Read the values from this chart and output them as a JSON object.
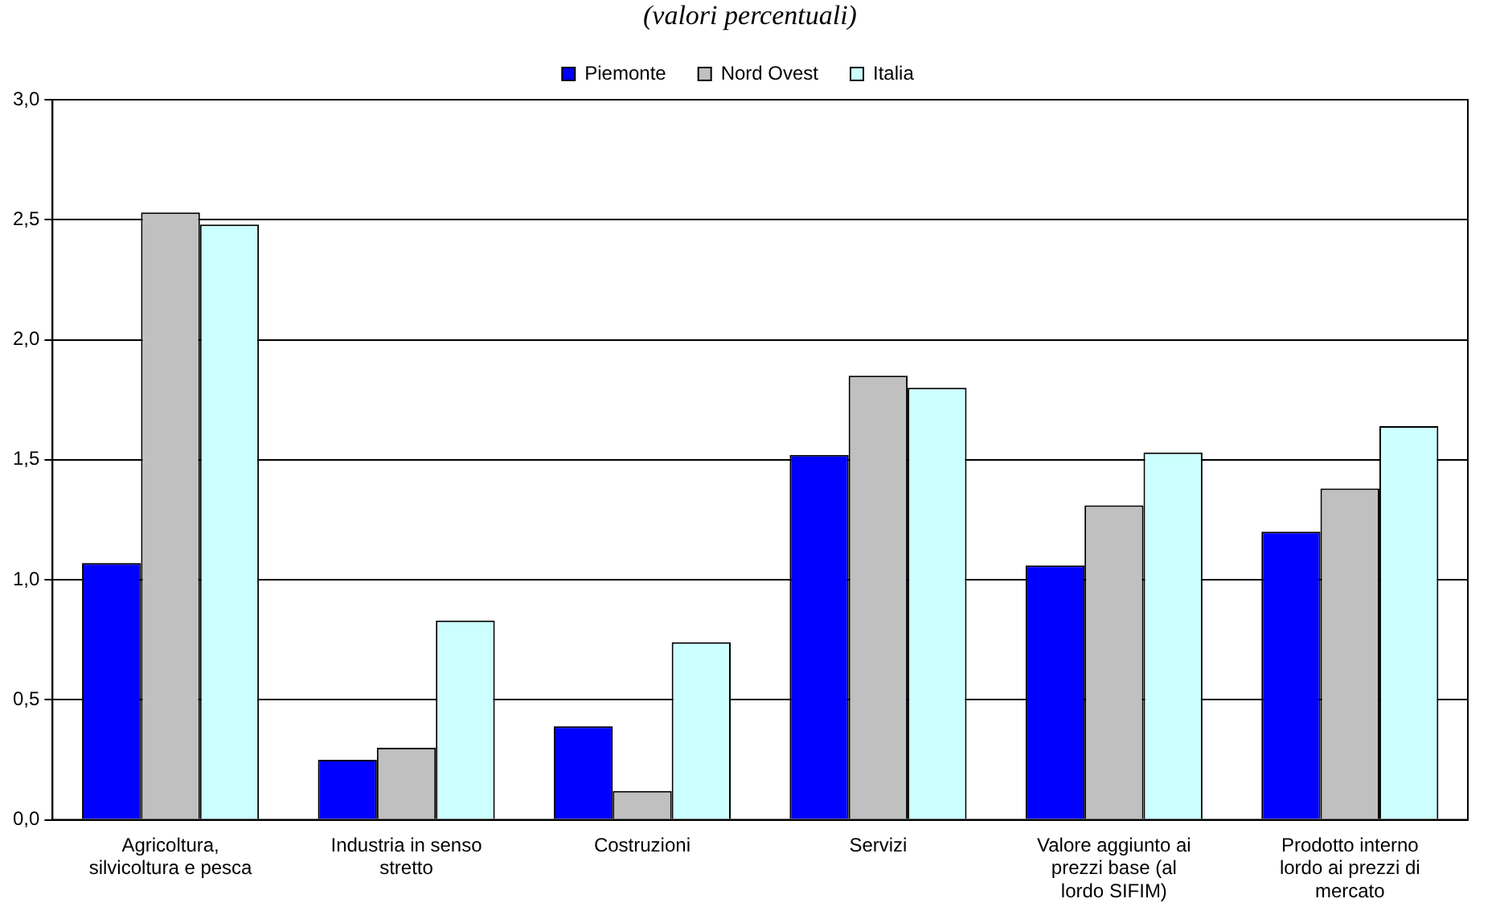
{
  "chart_data": {
    "type": "bar",
    "subtitle": "(valori percentuali)",
    "categories": [
      "Agricoltura, silvicoltura e pesca",
      "Industria in senso stretto",
      "Costruzioni",
      "Servizi",
      "Valore aggiunto ai prezzi base (al lordo SIFIM)",
      "Prodotto interno lordo ai prezzi di mercato"
    ],
    "series": [
      {
        "name": "Piemonte",
        "color": "#0000ff",
        "values": [
          1.07,
          0.25,
          0.39,
          1.52,
          1.06,
          1.2
        ]
      },
      {
        "name": "Nord Ovest",
        "color": "#c0c0c0",
        "values": [
          2.53,
          0.3,
          0.12,
          1.85,
          1.31,
          1.38
        ]
      },
      {
        "name": "Italia",
        "color": "#ccffff",
        "values": [
          2.48,
          0.83,
          0.74,
          1.8,
          1.53,
          1.64
        ]
      }
    ],
    "ylim": [
      0,
      3
    ],
    "yticks": [
      {
        "value": 0,
        "label": "0,0"
      },
      {
        "value": 0.5,
        "label": "0,5"
      },
      {
        "value": 1,
        "label": "1,0"
      },
      {
        "value": 1.5,
        "label": "1,5"
      },
      {
        "value": 2,
        "label": "2,0"
      },
      {
        "value": 2.5,
        "label": "2,5"
      },
      {
        "value": 3,
        "label": "3,0"
      }
    ],
    "grid": "y",
    "legend": "top"
  }
}
